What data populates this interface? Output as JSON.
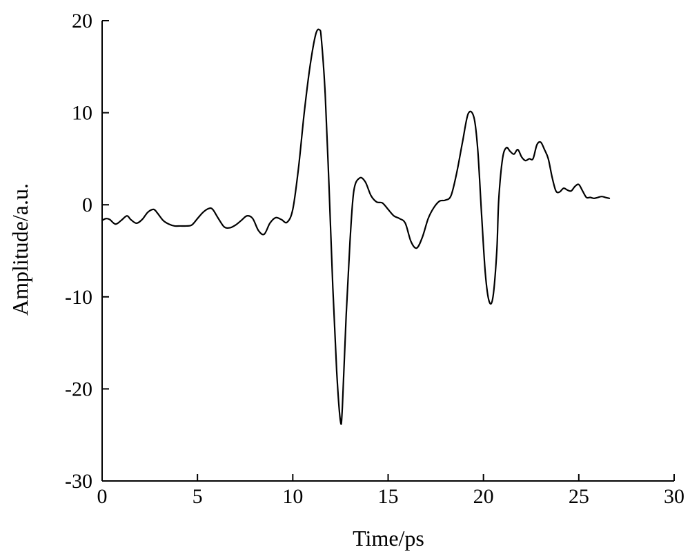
{
  "chart_data": {
    "type": "line",
    "title": "",
    "xlabel": "Time/ps",
    "ylabel": "Amplitude/a.u.",
    "xlim": [
      0,
      30
    ],
    "ylim": [
      -30,
      20
    ],
    "xticks": [
      0,
      5,
      10,
      15,
      20,
      25,
      30
    ],
    "yticks": [
      -30,
      -20,
      -10,
      0,
      10,
      20
    ],
    "xtick_labels": [
      "0",
      "5",
      "10",
      "15",
      "20",
      "25",
      "30"
    ],
    "ytick_labels": [
      "-30",
      "-20",
      "-10",
      "0",
      "10",
      "20"
    ],
    "grid": false,
    "legend": "none",
    "line_color": "#000000",
    "series": [
      {
        "x": [
          0.0,
          0.2,
          0.4,
          0.7,
          1.0,
          1.3,
          1.5,
          1.8,
          2.1,
          2.4,
          2.7,
          2.9,
          3.2,
          3.5,
          3.8,
          4.1,
          4.4,
          4.7,
          5.0,
          5.3,
          5.6,
          5.8,
          6.1,
          6.4,
          6.7,
          7.0,
          7.3,
          7.6,
          7.9,
          8.2,
          8.5,
          8.8,
          9.1,
          9.4,
          9.7,
          10.0,
          10.3,
          10.6,
          10.9,
          11.2,
          11.4,
          11.5,
          11.7,
          11.9,
          12.1,
          12.3,
          12.5,
          12.6,
          12.8,
          13.0,
          13.2,
          13.5,
          13.8,
          14.1,
          14.4,
          14.7,
          15.0,
          15.3,
          15.6,
          15.9,
          16.2,
          16.5,
          16.8,
          17.1,
          17.4,
          17.7,
          18.0,
          18.3,
          18.6,
          18.9,
          19.2,
          19.5,
          19.7,
          19.9,
          20.1,
          20.3,
          20.5,
          20.7,
          20.8,
          21.0,
          21.2,
          21.4,
          21.6,
          21.8,
          22.0,
          22.2,
          22.4,
          22.6,
          22.8,
          23.0,
          23.2,
          23.4,
          23.6,
          23.8,
          24.0,
          24.2,
          24.4,
          24.6,
          24.8,
          25.0,
          25.2,
          25.4,
          25.6,
          25.8,
          26.0,
          26.2,
          26.4,
          26.6
        ],
        "y": [
          -1.7,
          -1.5,
          -1.6,
          -2.1,
          -1.7,
          -1.2,
          -1.6,
          -2.0,
          -1.6,
          -0.8,
          -0.5,
          -0.9,
          -1.7,
          -2.1,
          -2.3,
          -2.3,
          -2.3,
          -2.2,
          -1.5,
          -0.8,
          -0.4,
          -0.5,
          -1.5,
          -2.4,
          -2.5,
          -2.2,
          -1.7,
          -1.2,
          -1.5,
          -2.8,
          -3.2,
          -2.0,
          -1.4,
          -1.6,
          -1.9,
          -0.5,
          4.0,
          10.0,
          15.0,
          18.5,
          19.0,
          18.0,
          12.0,
          2.0,
          -9.0,
          -18.0,
          -23.5,
          -22.0,
          -12.0,
          -4.0,
          1.5,
          2.9,
          2.5,
          1.0,
          0.3,
          0.2,
          -0.5,
          -1.2,
          -1.5,
          -2.0,
          -4.0,
          -4.7,
          -3.5,
          -1.5,
          -0.3,
          0.4,
          0.5,
          1.0,
          3.5,
          6.8,
          9.9,
          9.5,
          6.0,
          -1.0,
          -7.5,
          -10.5,
          -10.0,
          -5.0,
          0.5,
          5.0,
          6.2,
          5.8,
          5.5,
          6.0,
          5.2,
          4.8,
          5.0,
          5.0,
          6.5,
          6.8,
          6.0,
          5.0,
          3.0,
          1.5,
          1.4,
          1.8,
          1.6,
          1.5,
          2.0,
          2.2,
          1.5,
          0.8,
          0.8,
          0.7,
          0.8,
          0.9,
          0.8,
          0.7
        ]
      }
    ]
  }
}
